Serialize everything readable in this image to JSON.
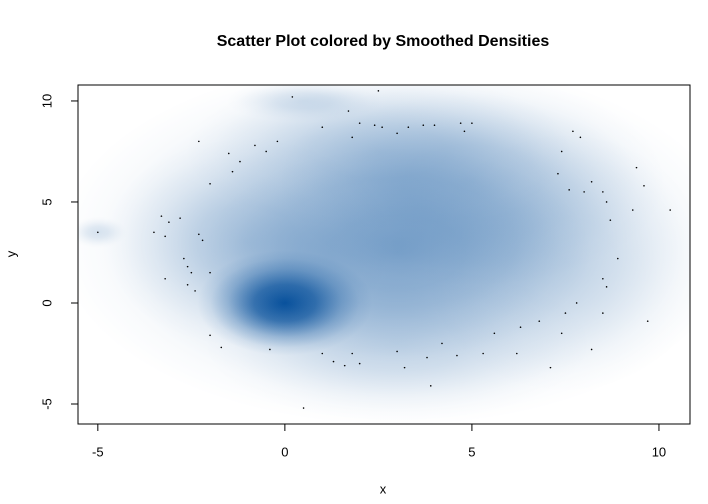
{
  "chart_data": {
    "type": "smooth-scatter",
    "title": "Scatter Plot colored by Smoothed Densities",
    "x_label": "x",
    "y_label": "y",
    "xlim": [
      -5.53,
      10.83
    ],
    "ylim": [
      -5.99,
      10.79
    ],
    "xticks": [
      -5,
      0,
      5,
      10
    ],
    "yticks": [
      -5,
      0,
      5,
      10
    ],
    "color": "#08519c",
    "point_color": "#000000",
    "density": {
      "x": [
        0,
        3,
        3,
        -1,
        5,
        3,
        -5,
        0.5,
        2.5,
        7.5
      ],
      "y": [
        0,
        3,
        2.5,
        3,
        6,
        -2,
        3.5,
        10,
        7.5,
        2
      ],
      "sx": [
        0.9,
        3.5,
        2,
        1.5,
        2,
        2,
        0.3,
        0.8,
        2,
        1.5
      ],
      "sy": [
        1.0,
        3.5,
        2,
        2,
        2,
        1.5,
        0.3,
        0.4,
        1.5,
        2.5
      ],
      "weight": [
        1,
        0.35,
        0.3,
        0.2,
        0.2,
        0.15,
        0.15,
        0.15,
        0.2,
        0.12
      ]
    },
    "x": [
      -5,
      -3.3,
      -3.1,
      -2.8,
      -3.5,
      -3.2,
      -2.7,
      -2.6,
      -2.5,
      -2.6,
      -3.2,
      -2.3,
      -2.2,
      -2.0,
      -2.4,
      -2.0,
      -1.7,
      -2.3,
      -1.5,
      -1.2,
      -0.8,
      -0.5,
      -0.2,
      0.2,
      -2.0,
      -1.4,
      0.5,
      1.0,
      1.3,
      1.6,
      1.8,
      2.0,
      -0.4,
      1.0,
      1.7,
      2.0,
      2.5,
      2.4,
      2.6,
      3.0,
      3.3,
      3.7,
      4.0,
      4.7,
      5.0,
      4.8,
      1.8,
      3.0,
      3.2,
      3.8,
      3.9,
      4.2,
      4.6,
      5.3,
      5.6,
      6.2,
      6.3,
      6.8,
      7.1,
      7.4,
      7.5,
      7.8,
      7.7,
      7.9,
      7.4,
      7.3,
      7.6,
      8.0,
      8.2,
      8.5,
      8.6,
      8.7,
      8.9,
      8.5,
      8.6,
      8.2,
      9.4,
      9.6,
      9.3,
      10.3,
      9.7,
      8.5
    ],
    "values": [
      3.5,
      4.3,
      4.0,
      4.2,
      3.5,
      3.3,
      2.2,
      1.8,
      1.5,
      0.9,
      1.2,
      3.4,
      3.1,
      1.5,
      0.6,
      -1.6,
      -2.2,
      8.0,
      7.4,
      7.0,
      7.8,
      7.5,
      8.0,
      10.2,
      5.9,
      6.5,
      -5.2,
      -2.5,
      -2.9,
      -3.1,
      -2.5,
      -3.0,
      -2.3,
      8.7,
      9.5,
      8.9,
      10.5,
      8.8,
      8.7,
      8.4,
      8.7,
      8.8,
      8.8,
      8.9,
      8.9,
      8.5,
      8.2,
      -2.4,
      -3.2,
      -2.7,
      -4.1,
      -2.0,
      -2.6,
      -2.5,
      -1.5,
      -2.5,
      -1.2,
      -0.9,
      -3.2,
      -1.5,
      -0.5,
      0.0,
      8.5,
      8.2,
      7.5,
      6.4,
      5.6,
      5.5,
      6.0,
      5.5,
      5.0,
      4.1,
      2.2,
      1.2,
      0.8,
      -2.3,
      6.7,
      5.8,
      4.6,
      4.6,
      -0.9,
      -0.5
    ]
  }
}
